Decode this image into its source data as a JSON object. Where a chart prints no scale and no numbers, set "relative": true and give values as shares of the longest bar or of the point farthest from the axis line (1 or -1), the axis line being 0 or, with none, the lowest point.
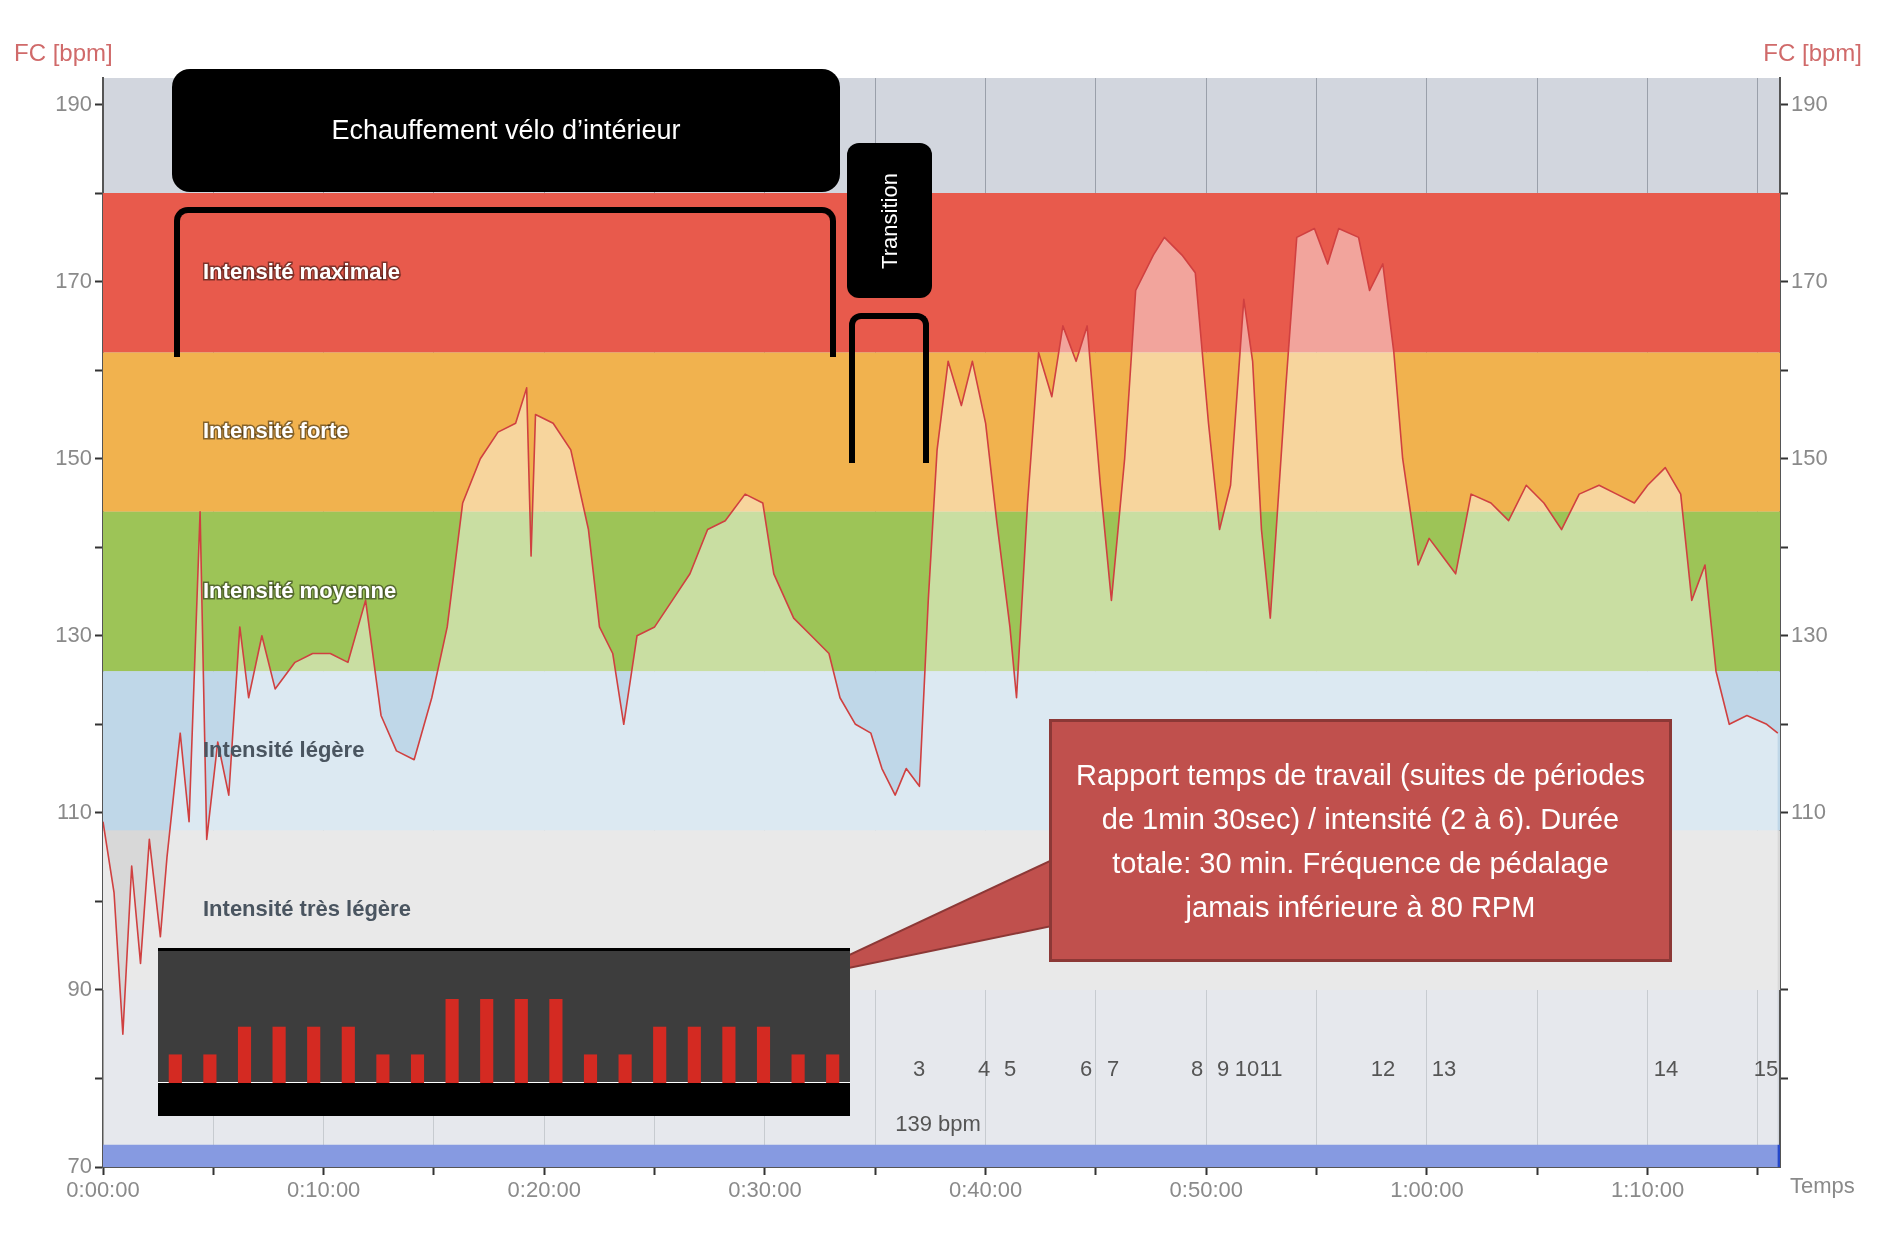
{
  "chart_data": [
    {
      "type": "area",
      "ylabel": "FC [bpm]",
      "y2label": "FC [bpm]",
      "xlabel": "Temps",
      "x": [
        0,
        0.5,
        0.9,
        1.3,
        1.7,
        2.1,
        2.6,
        2.9,
        3.5,
        3.9,
        4.4,
        4.7,
        5.2,
        5.7,
        6.2,
        6.6,
        7.2,
        7.8,
        8.7,
        9.5,
        10.3,
        11.1,
        11.9,
        12.6,
        13.3,
        14.1,
        14.9,
        15.6,
        16.3,
        17.1,
        17.9,
        18.7,
        19.2,
        19.4,
        19.6,
        20.4,
        21.2,
        22,
        22.5,
        23.1,
        23.6,
        24.2,
        25,
        25.8,
        26.6,
        27.4,
        28.2,
        29.1,
        29.9,
        30.4,
        31.3,
        32.1,
        32.9,
        33.4,
        34.1,
        34.8,
        35.3,
        35.9,
        36.4,
        37,
        37.4,
        37.8,
        38.3,
        38.9,
        39.4,
        40,
        40.5,
        41.1,
        41.4,
        41.9,
        42.4,
        43,
        43.5,
        44.1,
        44.6,
        45.2,
        45.7,
        46.3,
        46.8,
        47.6,
        48.1,
        48.9,
        49.5,
        50.1,
        50.6,
        51.1,
        51.7,
        52.1,
        52.5,
        52.9,
        53.6,
        54.1,
        54.9,
        55.5,
        56,
        56.9,
        57.4,
        58,
        58.5,
        58.9,
        59.6,
        60.1,
        60.7,
        61.3,
        62,
        62.9,
        63.7,
        64.5,
        65.3,
        66.1,
        66.9,
        67.8,
        68.6,
        69.4,
        70,
        70.8,
        71.5,
        72,
        72.6,
        73.1,
        73.7,
        74.5,
        75.4,
        75.9
      ],
      "series": [
        {
          "color": "#d04040",
          "values": [
            109,
            101,
            85,
            104,
            93,
            107,
            96,
            105,
            119,
            109,
            144,
            107,
            118,
            112,
            131,
            123,
            130,
            124,
            127,
            128,
            128,
            127,
            134,
            121,
            117,
            116,
            123,
            131,
            145,
            150,
            153,
            154,
            158,
            139,
            155,
            154,
            151,
            142,
            131,
            128,
            120,
            130,
            131,
            134,
            137,
            142,
            143,
            146,
            145,
            137,
            132,
            130,
            128,
            123,
            120,
            119,
            115,
            112,
            115,
            113,
            134,
            151,
            161,
            156,
            161,
            154,
            143,
            131,
            123,
            145,
            162,
            157,
            165,
            161,
            165,
            147,
            134,
            150,
            169,
            173,
            175,
            173,
            171,
            154,
            142,
            147,
            168,
            161,
            142,
            132,
            158,
            175,
            176,
            172,
            176,
            175,
            169,
            172,
            162,
            150,
            138,
            141,
            139,
            137,
            146,
            145,
            143,
            147,
            145,
            142,
            146,
            147,
            146,
            145,
            147,
            149,
            146,
            134,
            138,
            126,
            120,
            121,
            120,
            119
          ]
        }
      ],
      "xlim": [
        0,
        76
      ],
      "xticks": [
        {
          "value": 0,
          "label": "0:00:00"
        },
        {
          "value": 5,
          "label": null
        },
        {
          "value": 10,
          "label": "0:10:00"
        },
        {
          "value": 15,
          "label": null
        },
        {
          "value": 20,
          "label": "0:20:00"
        },
        {
          "value": 25,
          "label": null
        },
        {
          "value": 30,
          "label": "0:30:00"
        },
        {
          "value": 35,
          "label": null
        },
        {
          "value": 40,
          "label": "0:40:00"
        },
        {
          "value": 45,
          "label": null
        },
        {
          "value": 50,
          "label": "0:50:00"
        },
        {
          "value": 55,
          "label": null
        },
        {
          "value": 60,
          "label": "1:00:00"
        },
        {
          "value": 65,
          "label": null
        },
        {
          "value": 70,
          "label": "1:10:00"
        },
        {
          "value": 75,
          "label": null
        }
      ],
      "ylim": [
        70,
        193
      ],
      "yticks": [
        70,
        {
          "value": 80,
          "label": null
        },
        90,
        {
          "value": 100,
          "label": null
        },
        110,
        {
          "value": 120,
          "label": null
        },
        130,
        {
          "value": 140,
          "label": null
        },
        150,
        {
          "value": 160,
          "label": null
        },
        170,
        {
          "value": 180,
          "label": null
        },
        190
      ],
      "y2lim": [
        70,
        193
      ],
      "y2ticks": [
        {
          "value": 80,
          "label": null
        },
        {
          "value": 90,
          "label": null
        },
        110,
        {
          "value": 120,
          "label": null
        },
        130,
        {
          "value": 140,
          "label": null
        },
        150,
        {
          "value": 160,
          "label": null
        },
        170,
        {
          "value": 180,
          "label": null
        },
        190
      ],
      "bands": [
        {
          "axis": "y",
          "from": 162,
          "to": 180,
          "label": "Intensité maximale",
          "color": "#e85a4c"
        },
        {
          "axis": "y",
          "from": 144,
          "to": 162,
          "label": "Intensité forte",
          "color": "#f1b24e"
        },
        {
          "axis": "y",
          "from": 126,
          "to": 144,
          "label": "Intensité moyenne",
          "color": "#9dc457"
        },
        {
          "axis": "y",
          "from": 108,
          "to": 126,
          "label": "Intensité légère",
          "color": "#bfd7e8"
        },
        {
          "axis": "y",
          "from": 90,
          "to": 108,
          "label": "Intensité très légère",
          "color": "#d8d8d8"
        },
        {
          "axis": "y",
          "from": 70,
          "to": 72.5,
          "color": "#2447c9"
        }
      ],
      "annotations": [
        "Echauffement vélo d’intérieur",
        "Transition",
        "Rapport temps de travail (suites de périodes de 1min 30sec) / intensité (2 à 6). Durée totale: 30 min. Fréquence de pédalage jamais inférieure à 80 RPM",
        "139 bpm",
        "3",
        "4",
        "5",
        "6",
        "7",
        "8",
        "9",
        "10",
        "11",
        "12",
        "13",
        "14",
        "15"
      ],
      "grid": "x",
      "legend": false,
      "marker": "none",
      "line_style": "solid"
    },
    {
      "type": "bar",
      "relative": true,
      "categories": [
        null,
        null,
        null,
        null,
        null,
        null,
        null,
        null,
        null,
        null,
        null,
        null,
        null,
        null,
        null,
        null,
        null,
        null,
        null,
        null
      ],
      "series": [
        {
          "color": "#d42a22",
          "values": [
            0.34,
            0.34,
            0.67,
            0.67,
            0.67,
            0.67,
            0.34,
            0.34,
            1,
            1,
            1,
            1,
            0.34,
            0.34,
            0.67,
            0.67,
            0.67,
            0.67,
            0.34,
            0.34
          ]
        }
      ],
      "legend": false
    }
  ]
}
